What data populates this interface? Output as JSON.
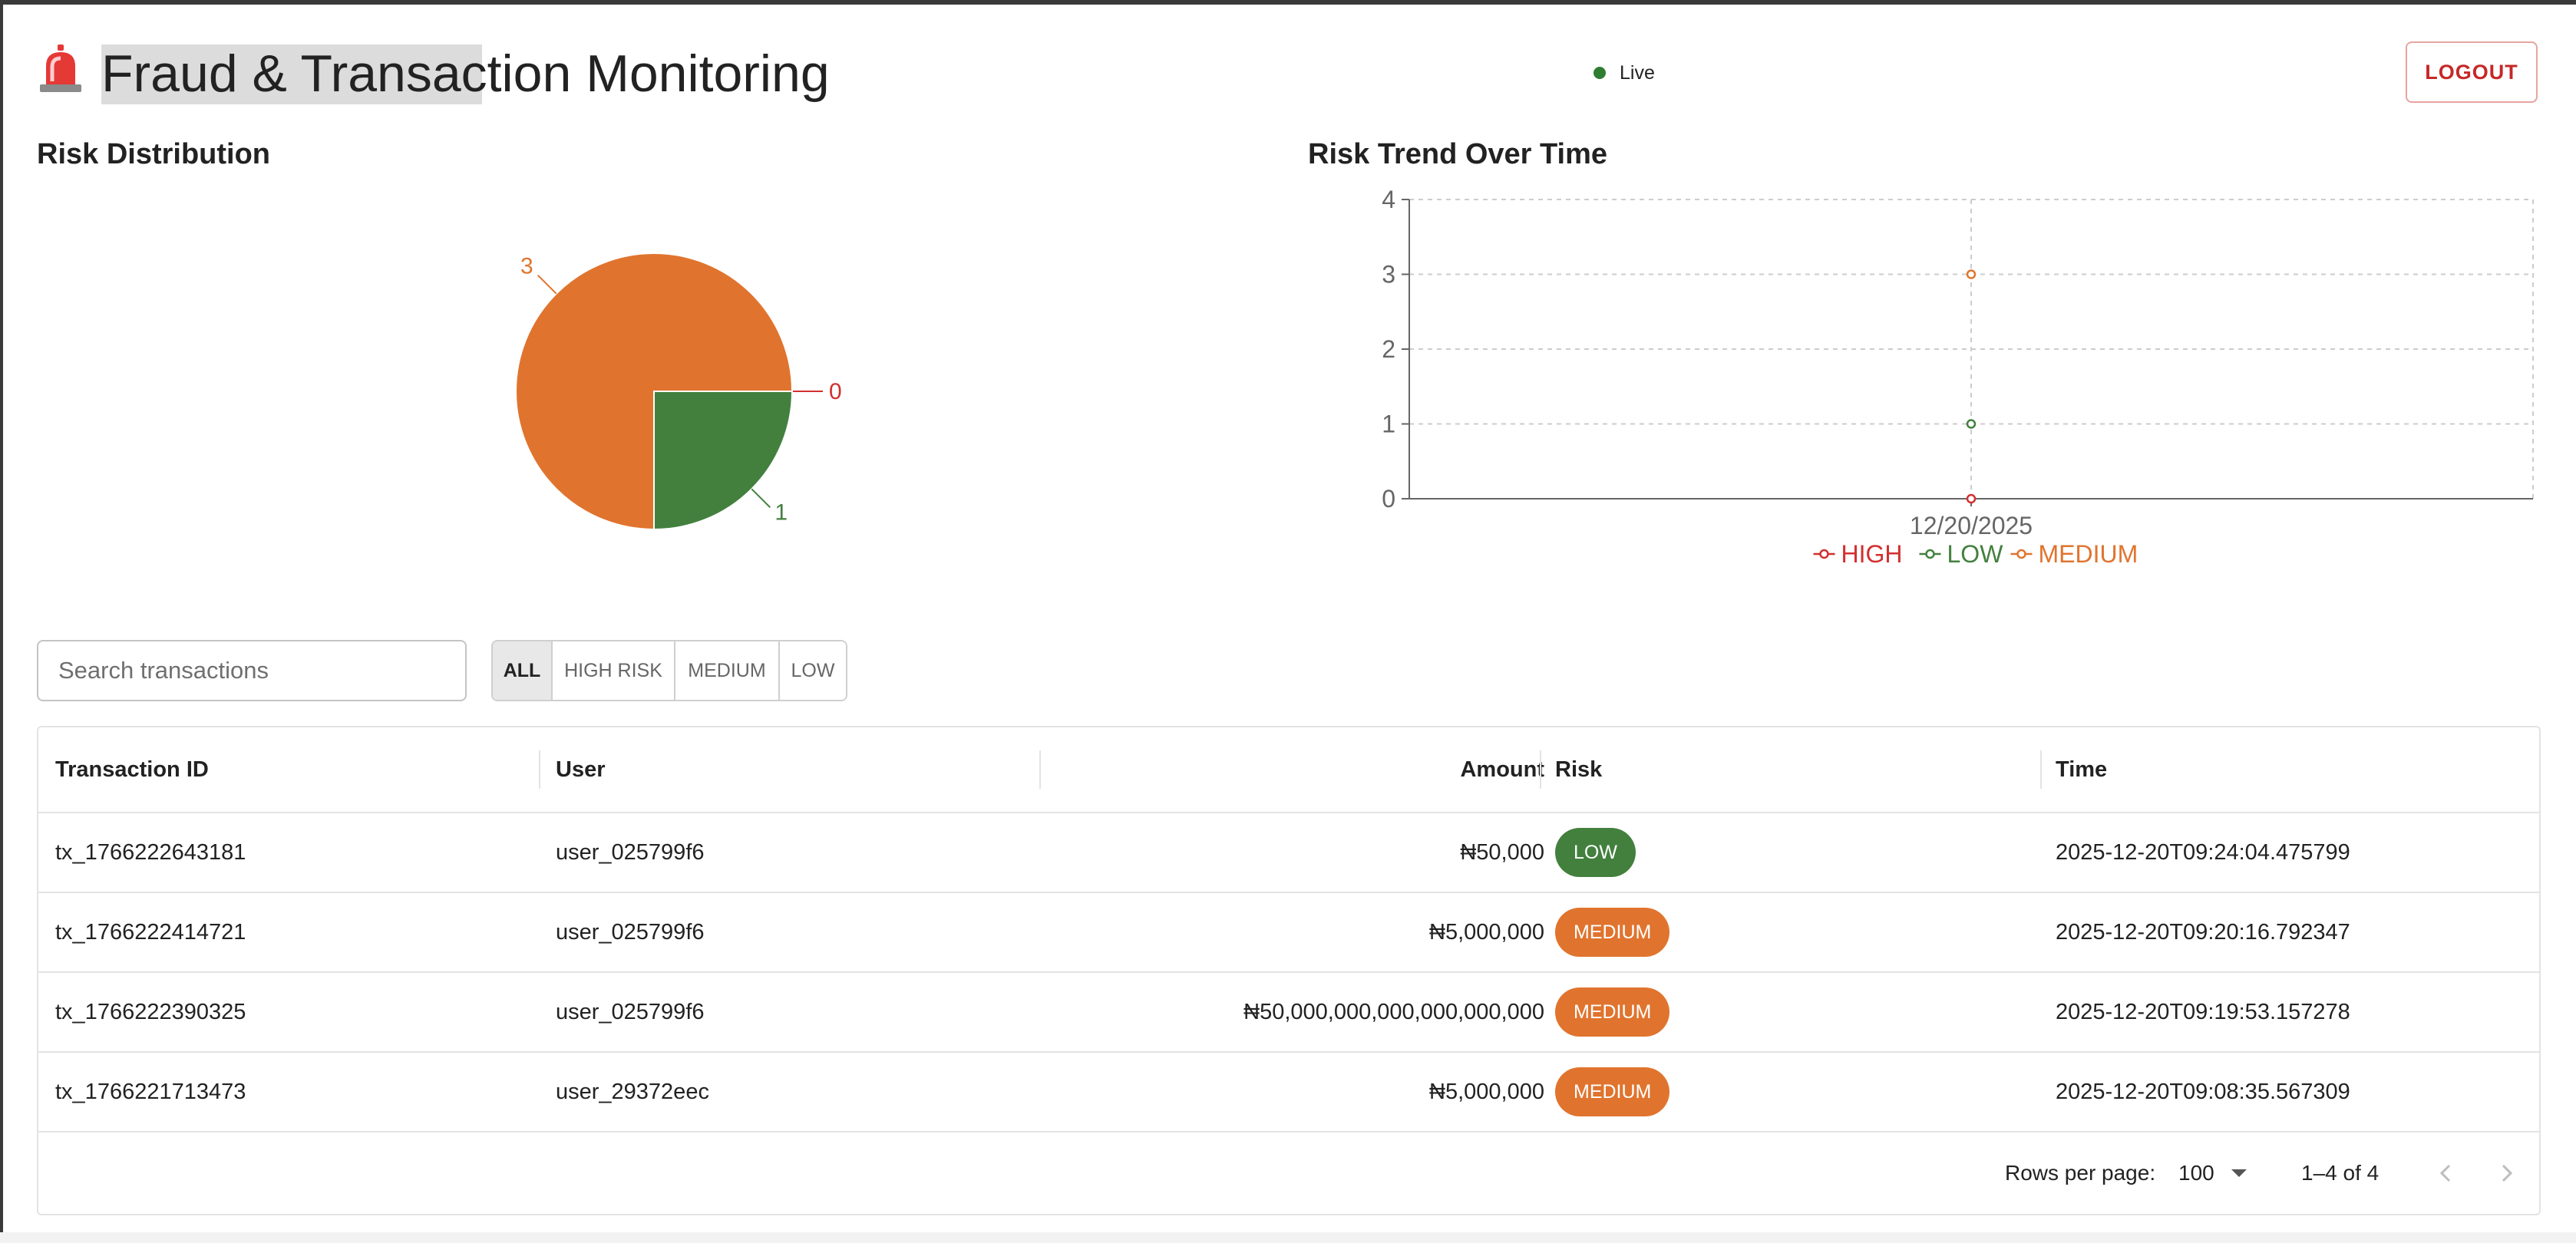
{
  "header": {
    "title": "Fraud & Transaction Monitoring",
    "app_icon": "rotating-light-icon",
    "live_label": "Live",
    "live_color": "#2e7d32",
    "logout_label": "LOGOUT"
  },
  "colors": {
    "high": "#d32f2f",
    "medium": "#e0742e",
    "low": "#43803e"
  },
  "risk_distribution": {
    "title": "Risk Distribution"
  },
  "risk_trend": {
    "title": "Risk Trend Over Time"
  },
  "chart_data": [
    {
      "type": "pie",
      "title": "Risk Distribution",
      "slices": [
        {
          "label": "HIGH",
          "value": 0,
          "color": "#d32f2f"
        },
        {
          "label": "LOW",
          "value": 1,
          "color": "#43803e"
        },
        {
          "label": "MEDIUM",
          "value": 3,
          "color": "#e0742e"
        }
      ]
    },
    {
      "type": "line",
      "title": "Risk Trend Over Time",
      "categories": [
        "12/20/2025"
      ],
      "ylim": [
        0,
        4
      ],
      "yticks": [
        0,
        1,
        2,
        3,
        4
      ],
      "grid": true,
      "legend": "bottom",
      "series": [
        {
          "name": "HIGH",
          "values": [
            0
          ],
          "color": "#d32f2f"
        },
        {
          "name": "LOW",
          "values": [
            1
          ],
          "color": "#43803e"
        },
        {
          "name": "MEDIUM",
          "values": [
            3
          ],
          "color": "#e0742e"
        }
      ]
    }
  ],
  "filters": {
    "search_placeholder": "Search transactions",
    "buttons": [
      "ALL",
      "HIGH RISK",
      "MEDIUM",
      "LOW"
    ],
    "active": "ALL"
  },
  "table": {
    "columns": [
      "Transaction ID",
      "User",
      "Amount",
      "Risk",
      "Time"
    ],
    "rows": [
      {
        "id": "tx_1766222643181",
        "user": "user_025799f6",
        "amount": "₦50,000",
        "risk": "LOW",
        "time": "2025-12-20T09:24:04.475799"
      },
      {
        "id": "tx_1766222414721",
        "user": "user_025799f6",
        "amount": "₦5,000,000",
        "risk": "MEDIUM",
        "time": "2025-12-20T09:20:16.792347"
      },
      {
        "id": "tx_1766222390325",
        "user": "user_025799f6",
        "amount": "₦50,000,000,000,000,000,000",
        "risk": "MEDIUM",
        "time": "2025-12-20T09:19:53.157278"
      },
      {
        "id": "tx_1766221713473",
        "user": "user_29372eec",
        "amount": "₦5,000,000",
        "risk": "MEDIUM",
        "time": "2025-12-20T09:08:35.567309"
      }
    ],
    "footer": {
      "rows_per_page_label": "Rows per page:",
      "rows_per_page_value": "100",
      "range_label": "1–4 of 4"
    }
  }
}
